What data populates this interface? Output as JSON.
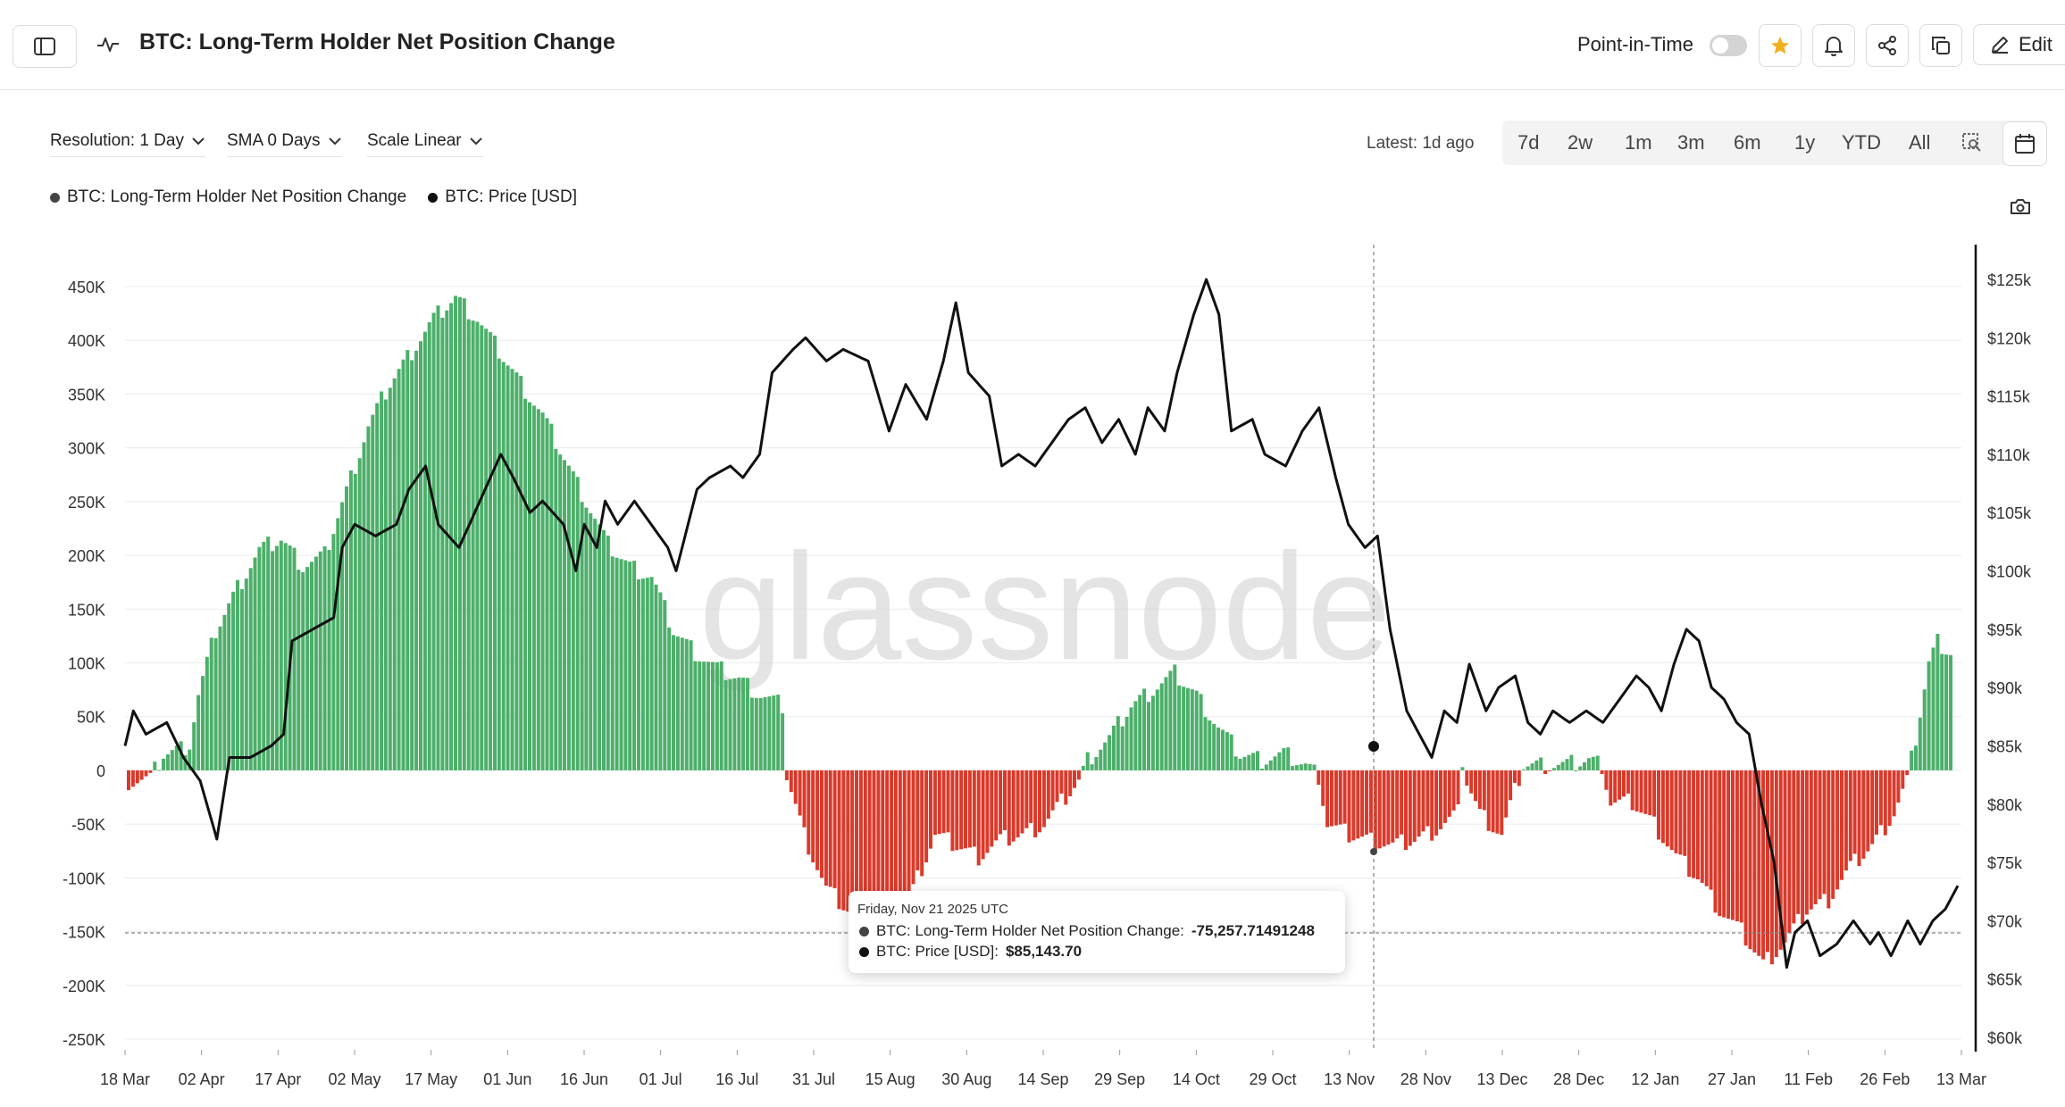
{
  "header": {
    "title": "BTC: Long-Term Holder Net Position Change",
    "point_in_time_label": "Point-in-Time",
    "point_in_time_on": false,
    "edit_label": "Edit",
    "star_color": "#f2b01e"
  },
  "controls": {
    "resolution": "Resolution: 1 Day",
    "sma": "SMA 0 Days",
    "scale": "Scale Linear",
    "latest": "Latest: 1d ago",
    "ranges": [
      "7d",
      "2w",
      "1m",
      "3m",
      "6m",
      "1y",
      "YTD",
      "All"
    ]
  },
  "legend": {
    "series1": "BTC: Long-Term Holder Net Position Change",
    "series2": "BTC: Price [USD]"
  },
  "watermark": "glassnode",
  "tooltip": {
    "date": "Friday, Nov 21 2025 UTC",
    "line1_label": "BTC: Long-Term Holder Net Position Change:",
    "line1_value": "-75,257.71491248",
    "line2_label": "BTC: Price [USD]:",
    "line2_value": "$85,143.70"
  },
  "chart_data": {
    "type": "bar",
    "title": "BTC: Long-Term Holder Net Position Change",
    "x_ticks": [
      "18 Mar",
      "02 Apr",
      "17 Apr",
      "02 May",
      "17 May",
      "01 Jun",
      "16 Jun",
      "01 Jul",
      "16 Jul",
      "31 Jul",
      "15 Aug",
      "30 Aug",
      "14 Sep",
      "29 Sep",
      "14 Oct",
      "29 Oct",
      "13 Nov",
      "28 Nov",
      "13 Dec",
      "28 Dec",
      "12 Jan",
      "27 Jan",
      "11 Feb",
      "26 Feb",
      "13 Mar"
    ],
    "left_axis": {
      "ticks": [
        "450K",
        "400K",
        "350K",
        "300K",
        "250K",
        "200K",
        "150K",
        "100K",
        "50K",
        "0",
        "-50K",
        "-100K",
        "-150K",
        "-200K",
        "-250K"
      ],
      "ylim": [
        -250000,
        450000
      ]
    },
    "right_axis": {
      "ticks": [
        "$125k",
        "$120k",
        "$115k",
        "$110k",
        "$105k",
        "$100k",
        "$95k",
        "$90k",
        "$85k",
        "$80k",
        "$75k",
        "$70k",
        "$65k",
        "$60k"
      ],
      "ylim": [
        60000,
        125000
      ]
    },
    "positive_color": "#4caf6a",
    "negative_color": "#d93a2b",
    "price_color": "#111111",
    "net_position_anchors": [
      [
        0,
        -10000
      ],
      [
        5,
        -8000
      ],
      [
        8,
        15000
      ],
      [
        12,
        20000
      ],
      [
        14,
        25000
      ],
      [
        16,
        70000
      ],
      [
        20,
        130000
      ],
      [
        25,
        170000
      ],
      [
        30,
        205000
      ],
      [
        35,
        215000
      ],
      [
        40,
        190000
      ],
      [
        45,
        200000
      ],
      [
        50,
        260000
      ],
      [
        55,
        320000
      ],
      [
        60,
        360000
      ],
      [
        65,
        390000
      ],
      [
        70,
        420000
      ],
      [
        75,
        440000
      ],
      [
        80,
        420000
      ],
      [
        85,
        390000
      ],
      [
        90,
        360000
      ],
      [
        95,
        330000
      ],
      [
        100,
        290000
      ],
      [
        105,
        250000
      ],
      [
        110,
        210000
      ],
      [
        115,
        190000
      ],
      [
        120,
        180000
      ],
      [
        125,
        130000
      ],
      [
        130,
        110000
      ],
      [
        135,
        95000
      ],
      [
        140,
        85000
      ],
      [
        145,
        70000
      ],
      [
        150,
        60000
      ],
      [
        151,
        -5000
      ],
      [
        155,
        -60000
      ],
      [
        160,
        -110000
      ],
      [
        165,
        -130000
      ],
      [
        170,
        -150000
      ],
      [
        175,
        -170000
      ],
      [
        180,
        -110000
      ],
      [
        185,
        -60000
      ],
      [
        190,
        -70000
      ],
      [
        195,
        -80000
      ],
      [
        200,
        -65000
      ],
      [
        205,
        -60000
      ],
      [
        210,
        -50000
      ],
      [
        215,
        -25000
      ],
      [
        218,
        -10000
      ],
      [
        220,
        10000
      ],
      [
        225,
        30000
      ],
      [
        230,
        60000
      ],
      [
        235,
        75000
      ],
      [
        240,
        90000
      ],
      [
        245,
        70000
      ],
      [
        250,
        40000
      ],
      [
        255,
        15000
      ],
      [
        260,
        10000
      ],
      [
        265,
        15000
      ],
      [
        270,
        5000
      ],
      [
        273,
        -5000
      ],
      [
        275,
        -50000
      ],
      [
        280,
        -60000
      ],
      [
        285,
        -65000
      ],
      [
        290,
        -70000
      ],
      [
        295,
        -65000
      ],
      [
        300,
        -55000
      ],
      [
        305,
        -40000
      ],
      [
        306,
        10000
      ],
      [
        307,
        -10000
      ],
      [
        310,
        -40000
      ],
      [
        315,
        -60000
      ],
      [
        318,
        -20000
      ],
      [
        320,
        5000
      ],
      [
        325,
        5000
      ],
      [
        330,
        5000
      ],
      [
        335,
        10000
      ],
      [
        338,
        5000
      ],
      [
        340,
        -30000
      ],
      [
        345,
        -30000
      ],
      [
        350,
        -50000
      ],
      [
        355,
        -80000
      ],
      [
        360,
        -100000
      ],
      [
        365,
        -130000
      ],
      [
        370,
        -150000
      ],
      [
        375,
        -180000
      ],
      [
        380,
        -160000
      ],
      [
        385,
        -130000
      ],
      [
        390,
        -120000
      ],
      [
        395,
        -90000
      ],
      [
        400,
        -70000
      ],
      [
        405,
        -40000
      ],
      [
        408,
        -10000
      ],
      [
        410,
        30000
      ],
      [
        413,
        100000
      ],
      [
        415,
        120000
      ],
      [
        418,
        110000
      ]
    ],
    "price_anchors": [
      [
        0,
        85000
      ],
      [
        2,
        88000
      ],
      [
        5,
        86000
      ],
      [
        10,
        87000
      ],
      [
        14,
        84000
      ],
      [
        18,
        82000
      ],
      [
        22,
        77000
      ],
      [
        25,
        84000
      ],
      [
        30,
        84000
      ],
      [
        35,
        85000
      ],
      [
        38,
        86000
      ],
      [
        40,
        94000
      ],
      [
        45,
        95000
      ],
      [
        50,
        96000
      ],
      [
        52,
        102000
      ],
      [
        55,
        104000
      ],
      [
        60,
        103000
      ],
      [
        65,
        104000
      ],
      [
        68,
        107000
      ],
      [
        72,
        109000
      ],
      [
        75,
        104000
      ],
      [
        80,
        102000
      ],
      [
        85,
        106000
      ],
      [
        90,
        110000
      ],
      [
        93,
        108000
      ],
      [
        97,
        105000
      ],
      [
        100,
        106000
      ],
      [
        105,
        104000
      ],
      [
        108,
        100000
      ],
      [
        110,
        104000
      ],
      [
        113,
        102000
      ],
      [
        115,
        106000
      ],
      [
        118,
        104000
      ],
      [
        122,
        106000
      ],
      [
        126,
        104000
      ],
      [
        130,
        102000
      ],
      [
        132,
        100000
      ],
      [
        137,
        107000
      ],
      [
        140,
        108000
      ],
      [
        145,
        109000
      ],
      [
        148,
        108000
      ],
      [
        152,
        110000
      ],
      [
        155,
        117000
      ],
      [
        160,
        119000
      ],
      [
        163,
        120000
      ],
      [
        168,
        118000
      ],
      [
        172,
        119000
      ],
      [
        178,
        118000
      ],
      [
        183,
        112000
      ],
      [
        187,
        116000
      ],
      [
        192,
        113000
      ],
      [
        196,
        118000
      ],
      [
        199,
        123000
      ],
      [
        202,
        117000
      ],
      [
        207,
        115000
      ],
      [
        210,
        109000
      ],
      [
        214,
        110000
      ],
      [
        218,
        109000
      ],
      [
        222,
        111000
      ],
      [
        226,
        113000
      ],
      [
        230,
        114000
      ],
      [
        234,
        111000
      ],
      [
        238,
        113000
      ],
      [
        242,
        110000
      ],
      [
        245,
        114000
      ],
      [
        249,
        112000
      ],
      [
        252,
        117000
      ],
      [
        256,
        122000
      ],
      [
        259,
        125000
      ],
      [
        262,
        122000
      ],
      [
        265,
        112000
      ],
      [
        270,
        113000
      ],
      [
        273,
        110000
      ],
      [
        278,
        109000
      ],
      [
        282,
        112000
      ],
      [
        286,
        114000
      ],
      [
        290,
        108000
      ],
      [
        293,
        104000
      ],
      [
        297,
        102000
      ],
      [
        300,
        103000
      ],
      [
        303,
        95000
      ],
      [
        307,
        88000
      ],
      [
        310,
        86000
      ],
      [
        313,
        84000
      ],
      [
        316,
        88000
      ],
      [
        319,
        87000
      ],
      [
        322,
        92000
      ],
      [
        326,
        88000
      ],
      [
        329,
        90000
      ],
      [
        333,
        91000
      ],
      [
        336,
        87000
      ],
      [
        339,
        86000
      ],
      [
        342,
        88000
      ],
      [
        346,
        87000
      ],
      [
        350,
        88000
      ],
      [
        354,
        87000
      ],
      [
        358,
        89000
      ],
      [
        362,
        91000
      ],
      [
        365,
        90000
      ],
      [
        368,
        88000
      ],
      [
        371,
        92000
      ],
      [
        374,
        95000
      ],
      [
        377,
        94000
      ],
      [
        380,
        90000
      ],
      [
        383,
        89000
      ],
      [
        386,
        87000
      ],
      [
        389,
        86000
      ],
      [
        392,
        80000
      ],
      [
        395,
        75000
      ],
      [
        398,
        66000
      ],
      [
        400,
        69000
      ],
      [
        403,
        70000
      ],
      [
        406,
        67000
      ],
      [
        410,
        68000
      ],
      [
        414,
        70000
      ],
      [
        418,
        68000
      ],
      [
        420,
        69000
      ],
      [
        423,
        67000
      ],
      [
        427,
        70000
      ],
      [
        430,
        68000
      ],
      [
        433,
        70000
      ],
      [
        436,
        71000
      ],
      [
        439,
        73000
      ]
    ]
  }
}
